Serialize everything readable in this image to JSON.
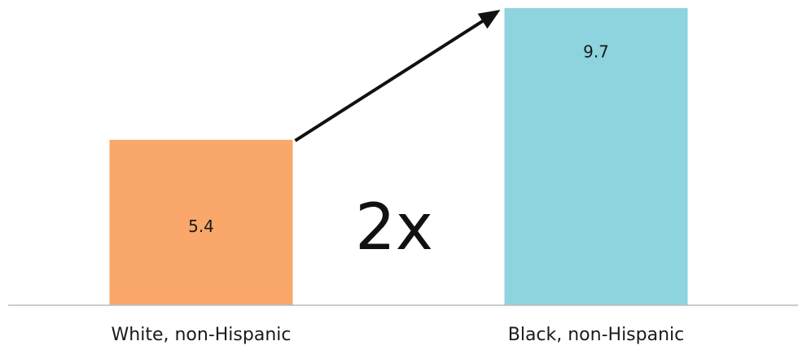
{
  "chart_data": {
    "type": "bar",
    "categories": [
      "White, non-Hispanic",
      "Black, non-Hispanic"
    ],
    "values": [
      5.4,
      9.7
    ],
    "value_labels": [
      "5.4",
      "9.7"
    ],
    "colors": [
      "#F9A76A",
      "#8DD4DF"
    ],
    "ylim": [
      0,
      9.7
    ],
    "grid": false,
    "annotation": {
      "text": "2x",
      "arrow": true,
      "arrow_from_category": 0,
      "arrow_to_category": 1
    },
    "baseline_color": "#BBBBBB",
    "arrow_color": "#111111"
  }
}
